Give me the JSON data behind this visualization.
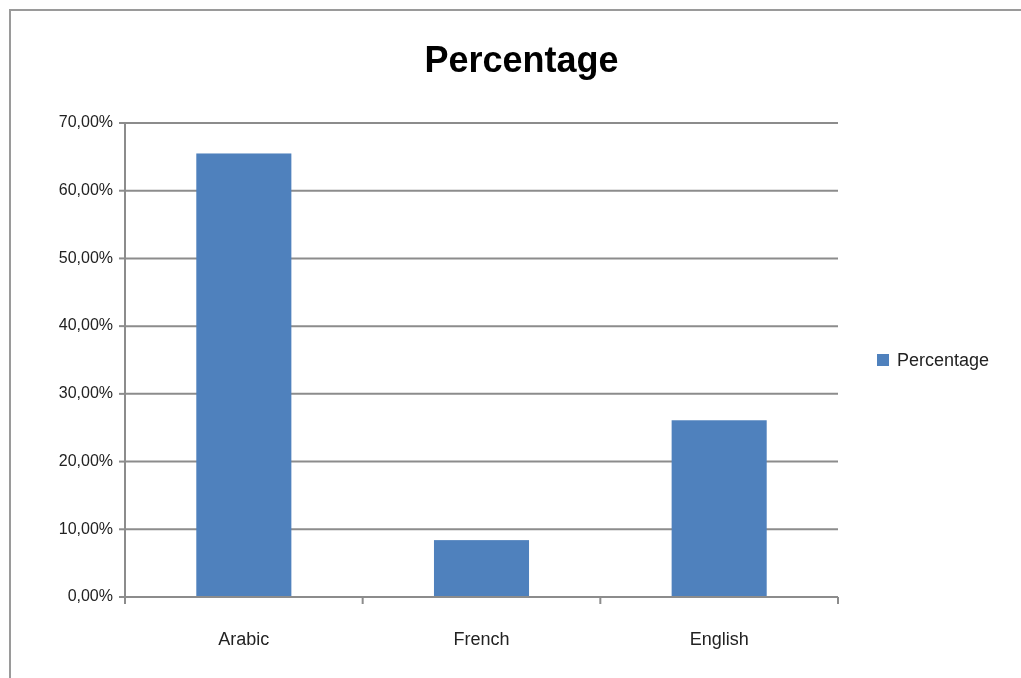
{
  "chart_data": {
    "type": "bar",
    "title": "Percentage",
    "categories": [
      "Arabic",
      "French",
      "English"
    ],
    "series": [
      {
        "name": "Percentage",
        "color": "#4f81bd",
        "values": [
          65.5,
          8.4,
          26.1
        ]
      }
    ],
    "ylim": [
      0,
      70
    ],
    "yticks": [
      {
        "value": 0,
        "label": "0,00%"
      },
      {
        "value": 10,
        "label": "10,00%"
      },
      {
        "value": 20,
        "label": "20,00%"
      },
      {
        "value": 30,
        "label": "30,00%"
      },
      {
        "value": 40,
        "label": "40,00%"
      },
      {
        "value": 50,
        "label": "50,00%"
      },
      {
        "value": 60,
        "label": "60,00%"
      },
      {
        "value": 70,
        "label": "70,00%"
      }
    ],
    "grid": true,
    "legend": "right"
  }
}
